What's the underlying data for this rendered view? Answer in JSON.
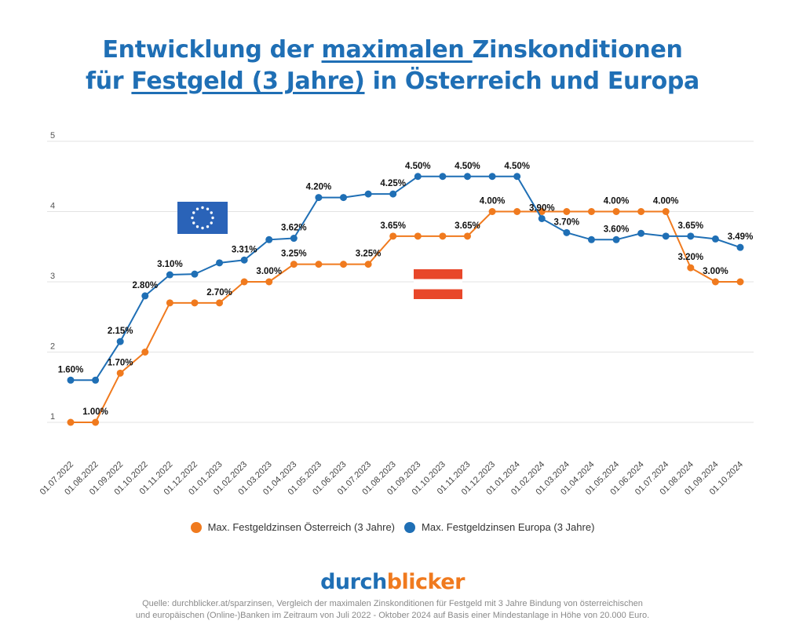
{
  "title": {
    "line1_pre": "Entwicklung der ",
    "line1_ul": "maximalen ",
    "line1_post": "Zinskonditionen",
    "line2_pre": "für ",
    "line2_ul": "Festgeld (3 Jahre)",
    "line2_post": " in Österreich und Europa"
  },
  "chart_data": {
    "type": "line",
    "title": "Entwicklung der maximalen Zinskonditionen für Festgeld (3 Jahre) in Österreich und Europa",
    "xlabel": "",
    "ylabel": "",
    "ylim": [
      0.7,
      5.1
    ],
    "yticks": [
      1,
      2,
      3,
      4,
      5
    ],
    "grid": true,
    "legend_position": "bottom",
    "categories": [
      "01.07.2022",
      "01.08.2022",
      "01.09.2022",
      "01.10.2022",
      "01.11.2022",
      "01.12.2022",
      "01.01.2023",
      "01.02.2023",
      "01.03.2023",
      "01.04.2023",
      "01.05.2023",
      "01.06.2023",
      "01.07.2023",
      "01.08.2023",
      "01.09.2023",
      "01.10.2023",
      "01.11.2023",
      "01.12.2023",
      "01.01.2024",
      "01.02.2024",
      "01.03.2024",
      "01.04.2024",
      "01.05.2024",
      "01.06.2024",
      "01.07.2024",
      "01.08.2024",
      "01.09.2024",
      "01.10.2024"
    ],
    "series": [
      {
        "name": "Max. Festgeldzinsen Österreich (3 Jahre)",
        "color": "#f07a1e",
        "values": [
          1.0,
          1.0,
          1.7,
          2.0,
          2.7,
          2.7,
          2.7,
          3.0,
          3.0,
          3.25,
          3.25,
          3.25,
          3.25,
          3.65,
          3.65,
          3.65,
          3.65,
          4.0,
          4.0,
          4.0,
          4.0,
          4.0,
          4.0,
          4.0,
          4.0,
          3.2,
          3.0,
          3.0
        ],
        "labels": {
          "1": "1.00%",
          "2": "1.70%",
          "6": "2.70%",
          "8": "3.00%",
          "9": "3.25%",
          "12": "3.25%",
          "13": "3.65%",
          "16": "3.65%",
          "17": "4.00%",
          "22": "4.00%",
          "24": "4.00%",
          "25": "3.20%",
          "26": "3.00%"
        }
      },
      {
        "name": "Max. Festgeldzinsen Europa (3 Jahre)",
        "color": "#1f6fb5",
        "values": [
          1.6,
          1.6,
          2.15,
          2.8,
          3.1,
          3.11,
          3.27,
          3.31,
          3.6,
          3.62,
          4.2,
          4.2,
          4.25,
          4.25,
          4.5,
          4.5,
          4.5,
          4.5,
          4.5,
          3.9,
          3.7,
          3.6,
          3.6,
          3.69,
          3.65,
          3.65,
          3.61,
          3.49
        ],
        "labels": {
          "0": "1.60%",
          "2": "2.15%",
          "3": "2.80%",
          "4": "3.10%",
          "7": "3.31%",
          "9": "3.62%",
          "10": "4.20%",
          "13": "4.25%",
          "14": "4.50%",
          "16": "4.50%",
          "18": "4.50%",
          "19": "3.90%",
          "20": "3.70%",
          "22": "3.60%",
          "25": "3.65%",
          "27": "3.49%"
        }
      }
    ],
    "annotations": [
      "EU flag near Europa series",
      "Austrian flag near Österreich series"
    ]
  },
  "brand": {
    "part1": "durch",
    "part2": "blicker"
  },
  "source": {
    "line1": "Quelle: durchblicker.at/sparzinsen, Vergleich der maximalen Zinskonditionen für Festgeld mit 3 Jahre Bindung von österreichischen",
    "line2": "und europäischen (Online-)Banken im Zeitraum von Juli 2022 - Oktober 2024 auf Basis einer Mindestanlage in Höhe von 20.000 Euro."
  },
  "colors": {
    "title": "#1f6fb5",
    "orange": "#f07a1e",
    "blue": "#1f6fb5",
    "grid": "#e3e3e3",
    "austria_red": "#e8472a",
    "eu_blue": "#2a63b8",
    "eu_star": "#ffffff"
  }
}
